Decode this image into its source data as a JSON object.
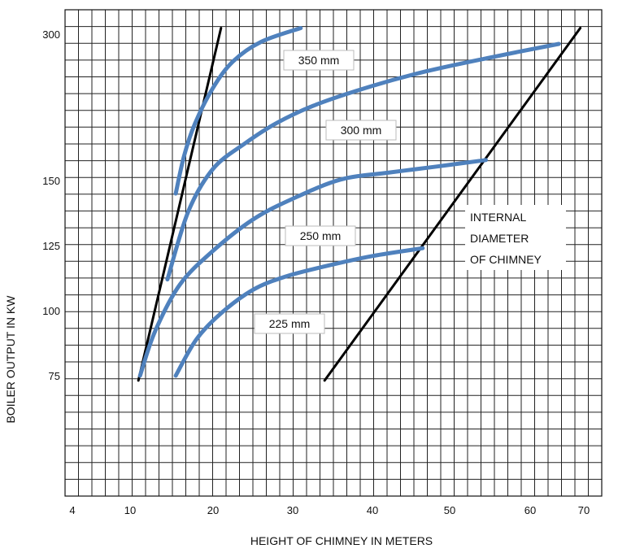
{
  "chart_data": {
    "type": "line",
    "xlabel": "HEIGHT OF CHIMNEY IN METERS",
    "ylabel": "BOILER OUTPUT IN KW",
    "x_tick_labels": [
      "4",
      "10",
      "20",
      "30",
      "40",
      "50",
      "60",
      "70"
    ],
    "y_tick_labels": [
      "75",
      "100",
      "125",
      "150",
      "300"
    ],
    "grid": true,
    "annotation": [
      "INTERNAL",
      "DIAMETER",
      "OF CHIMNEY"
    ],
    "series": [
      {
        "name": "350 mm",
        "color": "#4f81bd",
        "points": [
          [
            15.5,
            145
          ],
          [
            16.5,
            175
          ],
          [
            17.8,
            208
          ],
          [
            20,
            245
          ],
          [
            22.5,
            272
          ],
          [
            26,
            292
          ],
          [
            31,
            305
          ]
        ]
      },
      {
        "name": "300 mm",
        "color": "#4f81bd",
        "points": [
          [
            14.5,
            112
          ],
          [
            17,
            138
          ],
          [
            20,
            162
          ],
          [
            24,
            188
          ],
          [
            28,
            209
          ],
          [
            33,
            228
          ],
          [
            40,
            247
          ],
          [
            47,
            262
          ],
          [
            55,
            276
          ],
          [
            64,
            290
          ]
        ]
      },
      {
        "name": "250 mm",
        "color": "#4f81bd",
        "points": [
          [
            11.2,
            75
          ],
          [
            13,
            92
          ],
          [
            16,
            110
          ],
          [
            20,
            123
          ],
          [
            25,
            135
          ],
          [
            30,
            143
          ],
          [
            36,
            151
          ],
          [
            42,
            158
          ],
          [
            48,
            164
          ],
          [
            54.5,
            171
          ]
        ]
      },
      {
        "name": "225 mm",
        "color": "#4f81bd",
        "points": [
          [
            15.5,
            75
          ],
          [
            18,
            89
          ],
          [
            21,
            99
          ],
          [
            25,
            108
          ],
          [
            29,
            113
          ],
          [
            34,
            117
          ],
          [
            40,
            121
          ],
          [
            46.5,
            124
          ]
        ]
      }
    ],
    "reference_lines": [
      {
        "color": "#000000",
        "points": [
          [
            11,
            74
          ],
          [
            21,
            305
          ]
        ]
      },
      {
        "color": "#000000",
        "points": [
          [
            34,
            74
          ],
          [
            67,
            305
          ]
        ]
      }
    ]
  }
}
